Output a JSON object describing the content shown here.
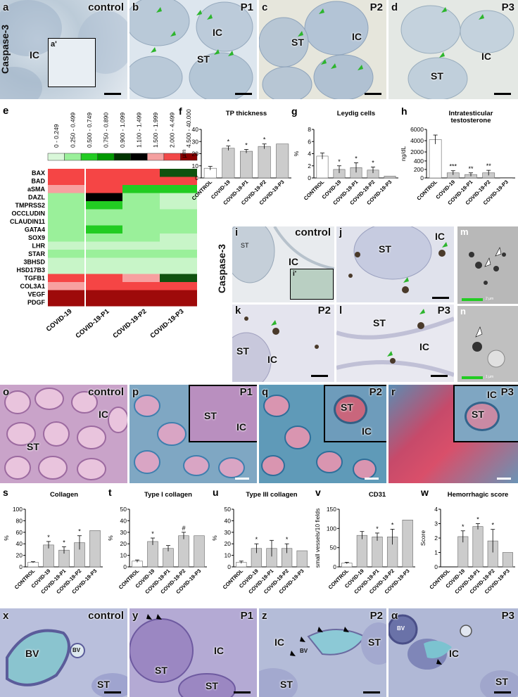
{
  "row1": {
    "side_label": "Caspase-3",
    "panels": [
      {
        "letter": "a",
        "group": "control",
        "labels": [
          "IC"
        ],
        "inset": "a'"
      },
      {
        "letter": "b",
        "group": "P1",
        "labels": [
          "IC",
          "ST"
        ]
      },
      {
        "letter": "c",
        "group": "P2",
        "labels": [
          "ST",
          "IC"
        ]
      },
      {
        "letter": "d",
        "group": "P3",
        "labels": [
          "IC",
          "ST"
        ]
      }
    ]
  },
  "heatmap": {
    "letter": "e",
    "bins": [
      "0 - 0.249",
      "0.250 - 0.499",
      "0.500 - 0.749",
      "0.750 - 0.890",
      "0.900 - 1.099",
      "1.100 - 1.499",
      "1.500 - 1.999",
      "2.000 - 4.499",
      "4.500 - 40.000"
    ],
    "bin_colors": [
      "#d9f7d9",
      "#9af09a",
      "#22cc22",
      "#009900",
      "#003300",
      "#000000",
      "#f4a0a0",
      "#f24848",
      "#8b0000"
    ],
    "genes": [
      "BAX",
      "BAD",
      "aSMA",
      "DAZL",
      "TMPRSS2",
      "OCCLUDIN",
      "CLAUDIN11",
      "GATA4",
      "SOX9",
      "LHR",
      "STAR",
      "3BHSD",
      "HSD17B3",
      "TGFB1",
      "COL3A1",
      "VEGF",
      "PDGF"
    ],
    "groups": [
      "COVID-19",
      "COVID-19-P1",
      "COVID-19-P2",
      "COVID-19-P3"
    ],
    "matrix": [
      [
        "#f54545",
        "#f54545",
        "#f54545",
        "#0f520f"
      ],
      [
        "#f54545",
        "#f54545",
        "#f54545",
        "#f54545"
      ],
      [
        "#f7a0a0",
        "#f54545",
        "#22cc22",
        "#22cc22"
      ],
      [
        "#9af09a",
        "#000000",
        "#9af09a",
        "#c8f5c8"
      ],
      [
        "#9af09a",
        "#22cc22",
        "#9af09a",
        "#c8f5c8"
      ],
      [
        "#9af09a",
        "#9af09a",
        "#9af09a",
        "#9af09a"
      ],
      [
        "#9af09a",
        "#9af09a",
        "#9af09a",
        "#9af09a"
      ],
      [
        "#9af09a",
        "#22cc22",
        "#9af09a",
        "#9af09a"
      ],
      [
        "#9af09a",
        "#9af09a",
        "#9af09a",
        "#c8f5c8"
      ],
      [
        "#c8f5c8",
        "#c8f5c8",
        "#c8f5c8",
        "#c8f5c8"
      ],
      [
        "#9af09a",
        "#9af09a",
        "#9af09a",
        "#9af09a"
      ],
      [
        "#c8f5c8",
        "#c8f5c8",
        "#c8f5c8",
        "#c8f5c8"
      ],
      [
        "#c8f5c8",
        "#c8f5c8",
        "#c8f5c8",
        "#c8f5c8"
      ],
      [
        "#f54545",
        "#f54545",
        "#f7a0a0",
        "#0f520f"
      ],
      [
        "#f7a0a0",
        "#f54545",
        "#f54545",
        "#f54545"
      ],
      [
        "#9e0a0a",
        "#9e0a0a",
        "#9e0a0a",
        "#9e0a0a"
      ],
      [
        "#9e0a0a",
        "#9e0a0a",
        "#9e0a0a",
        "#9e0a0a"
      ]
    ]
  },
  "chart_data": [
    {
      "letter": "f",
      "type": "bar",
      "title": "TP thickness",
      "ylabel": "µm",
      "ylim": [
        0,
        40
      ],
      "yticks": [
        0,
        10,
        20,
        30,
        40
      ],
      "categories": [
        "CONTROL",
        "COVID-19",
        "COVID-19-P1",
        "COVID-19-P2",
        "COVID-19-P3"
      ],
      "values": [
        8,
        24.5,
        22,
        26,
        28
      ],
      "errors": [
        1.5,
        1.8,
        1.5,
        2,
        0
      ],
      "sig": [
        "",
        "*",
        "*",
        "*",
        ""
      ]
    },
    {
      "letter": "g",
      "type": "bar",
      "title": "Leydig cells",
      "ylabel": "%",
      "ylim": [
        0,
        8
      ],
      "yticks": [
        0,
        2,
        4,
        6,
        8
      ],
      "categories": [
        "CONTROL",
        "COVID-19",
        "COVID-19-P1",
        "COVID-19-P2",
        "COVID-19-P3"
      ],
      "values": [
        3.6,
        1.4,
        1.7,
        1.3,
        0.3
      ],
      "errors": [
        0.5,
        0.6,
        0.8,
        0.5,
        0
      ],
      "sig": [
        "",
        "*",
        "*",
        "*",
        ""
      ]
    },
    {
      "letter": "h",
      "type": "bar",
      "title": "Intratesticular testosterone",
      "ylabel": "ng/dL",
      "ylim": [
        0,
        6000
      ],
      "yticks": [
        0,
        200,
        400,
        2000,
        4000,
        6000
      ],
      "categories": [
        "CONTROL",
        "COVID-19",
        "COVID-19-P1",
        "COVID-19-P2",
        "COVID-19-P3"
      ],
      "values": [
        4200,
        120,
        80,
        120,
        10
      ],
      "errors": [
        800,
        50,
        40,
        60,
        0
      ],
      "sig": [
        "",
        "***",
        "**",
        "**",
        ""
      ]
    },
    {
      "letter": "s",
      "type": "bar",
      "title": "Collagen",
      "ylabel": "%",
      "ylim": [
        0,
        100
      ],
      "yticks": [
        0,
        20,
        40,
        60,
        80,
        100
      ],
      "categories": [
        "CONTROL",
        "COVID-19",
        "COVID-19-P1",
        "COVID-19-P2",
        "COVID-19-P3"
      ],
      "values": [
        8,
        38,
        29,
        42,
        63
      ],
      "errors": [
        1,
        6,
        6,
        12,
        0
      ],
      "sig": [
        "",
        "*",
        "*",
        "*",
        ""
      ]
    },
    {
      "letter": "t",
      "type": "bar",
      "title": "Type I collagen",
      "ylabel": "%",
      "ylim": [
        0,
        50
      ],
      "yticks": [
        0,
        10,
        20,
        30,
        40,
        50
      ],
      "categories": [
        "CONTROL",
        "COVID-19",
        "COVID-19-P1",
        "COVID-19-P2",
        "COVID-19-P3"
      ],
      "values": [
        5,
        22,
        16,
        27,
        27
      ],
      "errors": [
        1,
        3,
        2.5,
        3,
        0
      ],
      "sig": [
        "",
        "*",
        "",
        "#",
        ""
      ]
    },
    {
      "letter": "u",
      "type": "bar",
      "title": "Type III collagen",
      "ylabel": "%",
      "ylim": [
        0,
        50
      ],
      "yticks": [
        0,
        10,
        20,
        30,
        40,
        50
      ],
      "categories": [
        "CONTROL",
        "COVID-19",
        "COVID-19-P1",
        "COVID-19-P2",
        "COVID-19-P3"
      ],
      "values": [
        4,
        16,
        16,
        16,
        14
      ],
      "errors": [
        1,
        4,
        7,
        4,
        0
      ],
      "sig": [
        "",
        "*",
        "",
        "*",
        ""
      ]
    },
    {
      "letter": "v",
      "type": "bar",
      "title": "CD31",
      "ylabel": "small vessels/10 fields",
      "ylim": [
        0,
        150
      ],
      "yticks": [
        0,
        50,
        100,
        150
      ],
      "categories": [
        "CONTROL",
        "COVID-19",
        "COVID-19-P1",
        "COVID-19-P2",
        "COVID-19-P3"
      ],
      "values": [
        10,
        82,
        78,
        78,
        122
      ],
      "errors": [
        2,
        10,
        10,
        20,
        0
      ],
      "sig": [
        "",
        "",
        "*",
        "*",
        ""
      ]
    },
    {
      "letter": "w",
      "type": "bar",
      "title": "Hemorrhagic score",
      "ylabel": "Score",
      "ylim": [
        0,
        4
      ],
      "yticks": [
        0,
        1,
        2,
        3,
        4
      ],
      "categories": [
        "CONTROL",
        "COVID-19",
        "COVID-19-P1",
        "COVID-19-P2",
        "COVID-19-P3"
      ],
      "values": [
        0,
        2.1,
        2.8,
        1.8,
        1
      ],
      "errors": [
        0,
        0.4,
        0.2,
        0.8,
        0
      ],
      "sig": [
        "",
        "*",
        "*",
        "*",
        ""
      ]
    }
  ],
  "caspase_block": {
    "side_label": "Caspase-3",
    "panels": [
      {
        "letter": "i",
        "group": "control",
        "labels": [
          "ST",
          "IC"
        ],
        "inset": "i'"
      },
      {
        "letter": "j",
        "group": "",
        "labels": [
          "ST",
          "IC"
        ]
      },
      {
        "letter": "k",
        "group": "P2",
        "labels": [
          "ST",
          "IC"
        ]
      },
      {
        "letter": "l",
        "group": "P3",
        "labels": [
          "ST",
          "IC"
        ]
      }
    ]
  },
  "em_panels": [
    {
      "letter": "m",
      "scale": "2 µm"
    },
    {
      "letter": "n",
      "scale": "1 µm"
    }
  ],
  "row_masson": {
    "panels": [
      {
        "letter": "o",
        "group": "control",
        "labels": [
          "IC",
          "ST"
        ]
      },
      {
        "letter": "p",
        "group": "P1",
        "labels": [
          "ST",
          "IC"
        ]
      },
      {
        "letter": "q",
        "group": "P2",
        "labels": [
          "ST",
          "IC"
        ]
      },
      {
        "letter": "r",
        "group": "P3",
        "labels": [
          "IC",
          "ST"
        ]
      }
    ]
  },
  "row_toluidine": {
    "panels": [
      {
        "letter": "x",
        "group": "control",
        "labels": [
          "BV",
          "BV",
          "ST"
        ]
      },
      {
        "letter": "y",
        "group": "P1",
        "labels": [
          "ST",
          "IC",
          "ST"
        ]
      },
      {
        "letter": "z",
        "group": "P2",
        "labels": [
          "IC",
          "BV",
          "ST",
          "ST"
        ]
      },
      {
        "letter": "α",
        "group": "P3",
        "labels": [
          "BV",
          "IC",
          "ST"
        ]
      }
    ]
  }
}
